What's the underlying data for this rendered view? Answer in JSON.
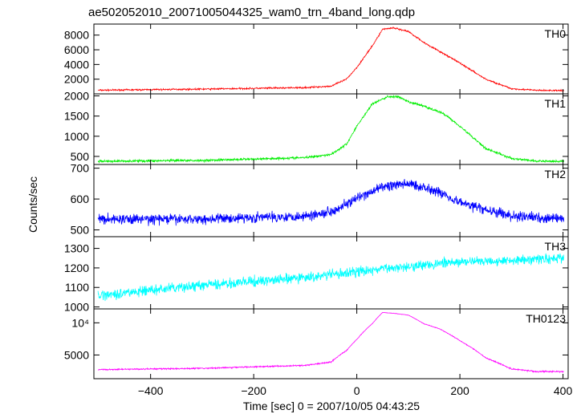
{
  "chart_data": {
    "type": "line",
    "title": "ae502052010_20071005044325_wam0_trn_4band_long.qdp",
    "xlabel": "Time [sec] 0 = 2007/10/05 04:43:25",
    "ylabel": "Counts/sec",
    "xlim": [
      -510,
      410
    ],
    "x_ticks": [
      {
        "value": -400,
        "label": "−400"
      },
      {
        "value": -200,
        "label": "−200"
      },
      {
        "value": 0,
        "label": "0"
      },
      {
        "value": 200,
        "label": "200"
      },
      {
        "value": 400,
        "label": "400"
      }
    ],
    "panels": [
      {
        "name": "TH0",
        "color": "#ff0000",
        "scale": "linear",
        "ylim": [
          0,
          9500
        ],
        "y_ticks": [
          {
            "value": 2000,
            "label": "2000"
          },
          {
            "value": 4000,
            "label": "4000"
          },
          {
            "value": 6000,
            "label": "6000"
          },
          {
            "value": 8000,
            "label": "8000"
          }
        ],
        "noise": 90,
        "x": [
          -500,
          -300,
          -100,
          -50,
          -20,
          0,
          30,
          50,
          70,
          100,
          130,
          160,
          200,
          250,
          300,
          350,
          400
        ],
        "values": [
          500,
          650,
          850,
          1050,
          2000,
          3600,
          6500,
          8800,
          9000,
          8500,
          7000,
          5800,
          4200,
          2000,
          700,
          480,
          450
        ]
      },
      {
        "name": "TH1",
        "color": "#00ee00",
        "scale": "linear",
        "ylim": [
          300,
          2050
        ],
        "y_ticks": [
          {
            "value": 500,
            "label": "500"
          },
          {
            "value": 1000,
            "label": "1000"
          },
          {
            "value": 1500,
            "label": "1500"
          },
          {
            "value": 2000,
            "label": "2000"
          }
        ],
        "noise": 25,
        "x": [
          -500,
          -300,
          -100,
          -50,
          -20,
          0,
          30,
          60,
          80,
          100,
          130,
          170,
          200,
          250,
          300,
          350,
          400
        ],
        "values": [
          380,
          400,
          470,
          550,
          800,
          1250,
          1800,
          1980,
          1980,
          1850,
          1750,
          1550,
          1250,
          700,
          450,
          380,
          380
        ]
      },
      {
        "name": "TH2",
        "color": "#0000ff",
        "scale": "linear",
        "ylim": [
          478,
          712
        ],
        "y_ticks": [
          {
            "value": 500,
            "label": "500"
          },
          {
            "value": 600,
            "label": "600"
          },
          {
            "value": 700,
            "label": "700"
          }
        ],
        "noise": 14,
        "x": [
          -500,
          -300,
          -100,
          -50,
          0,
          50,
          100,
          150,
          200,
          250,
          300,
          350,
          400
        ],
        "values": [
          535,
          535,
          545,
          560,
          600,
          640,
          650,
          630,
          590,
          565,
          545,
          540,
          535
        ]
      },
      {
        "name": "TH3",
        "color": "#00ffff",
        "scale": "linear",
        "ylim": [
          990,
          1360
        ],
        "y_ticks": [
          {
            "value": 1000,
            "label": "1000"
          },
          {
            "value": 1100,
            "label": "1100"
          },
          {
            "value": 1200,
            "label": "1200"
          },
          {
            "value": 1300,
            "label": "1300"
          }
        ],
        "noise": 22,
        "x": [
          -500,
          -300,
          -100,
          0,
          100,
          200,
          300,
          400
        ],
        "values": [
          1060,
          1110,
          1150,
          1180,
          1210,
          1230,
          1240,
          1250
        ]
      },
      {
        "name": "TH0123",
        "color": "#ff00ff",
        "scale": "log",
        "ylim": [
          3000,
          13500
        ],
        "y_ticks": [
          {
            "value": 5000,
            "label": "5000"
          },
          {
            "value": 10000,
            "label": "10⁴"
          }
        ],
        "noise": 45,
        "x": [
          -500,
          -300,
          -100,
          -50,
          -20,
          0,
          30,
          50,
          70,
          100,
          130,
          160,
          200,
          250,
          300,
          350,
          400
        ],
        "values": [
          3650,
          3750,
          4000,
          4300,
          5500,
          7000,
          9800,
          12500,
          12300,
          11800,
          9800,
          8800,
          6800,
          4700,
          3700,
          3500,
          3500
        ]
      }
    ]
  }
}
